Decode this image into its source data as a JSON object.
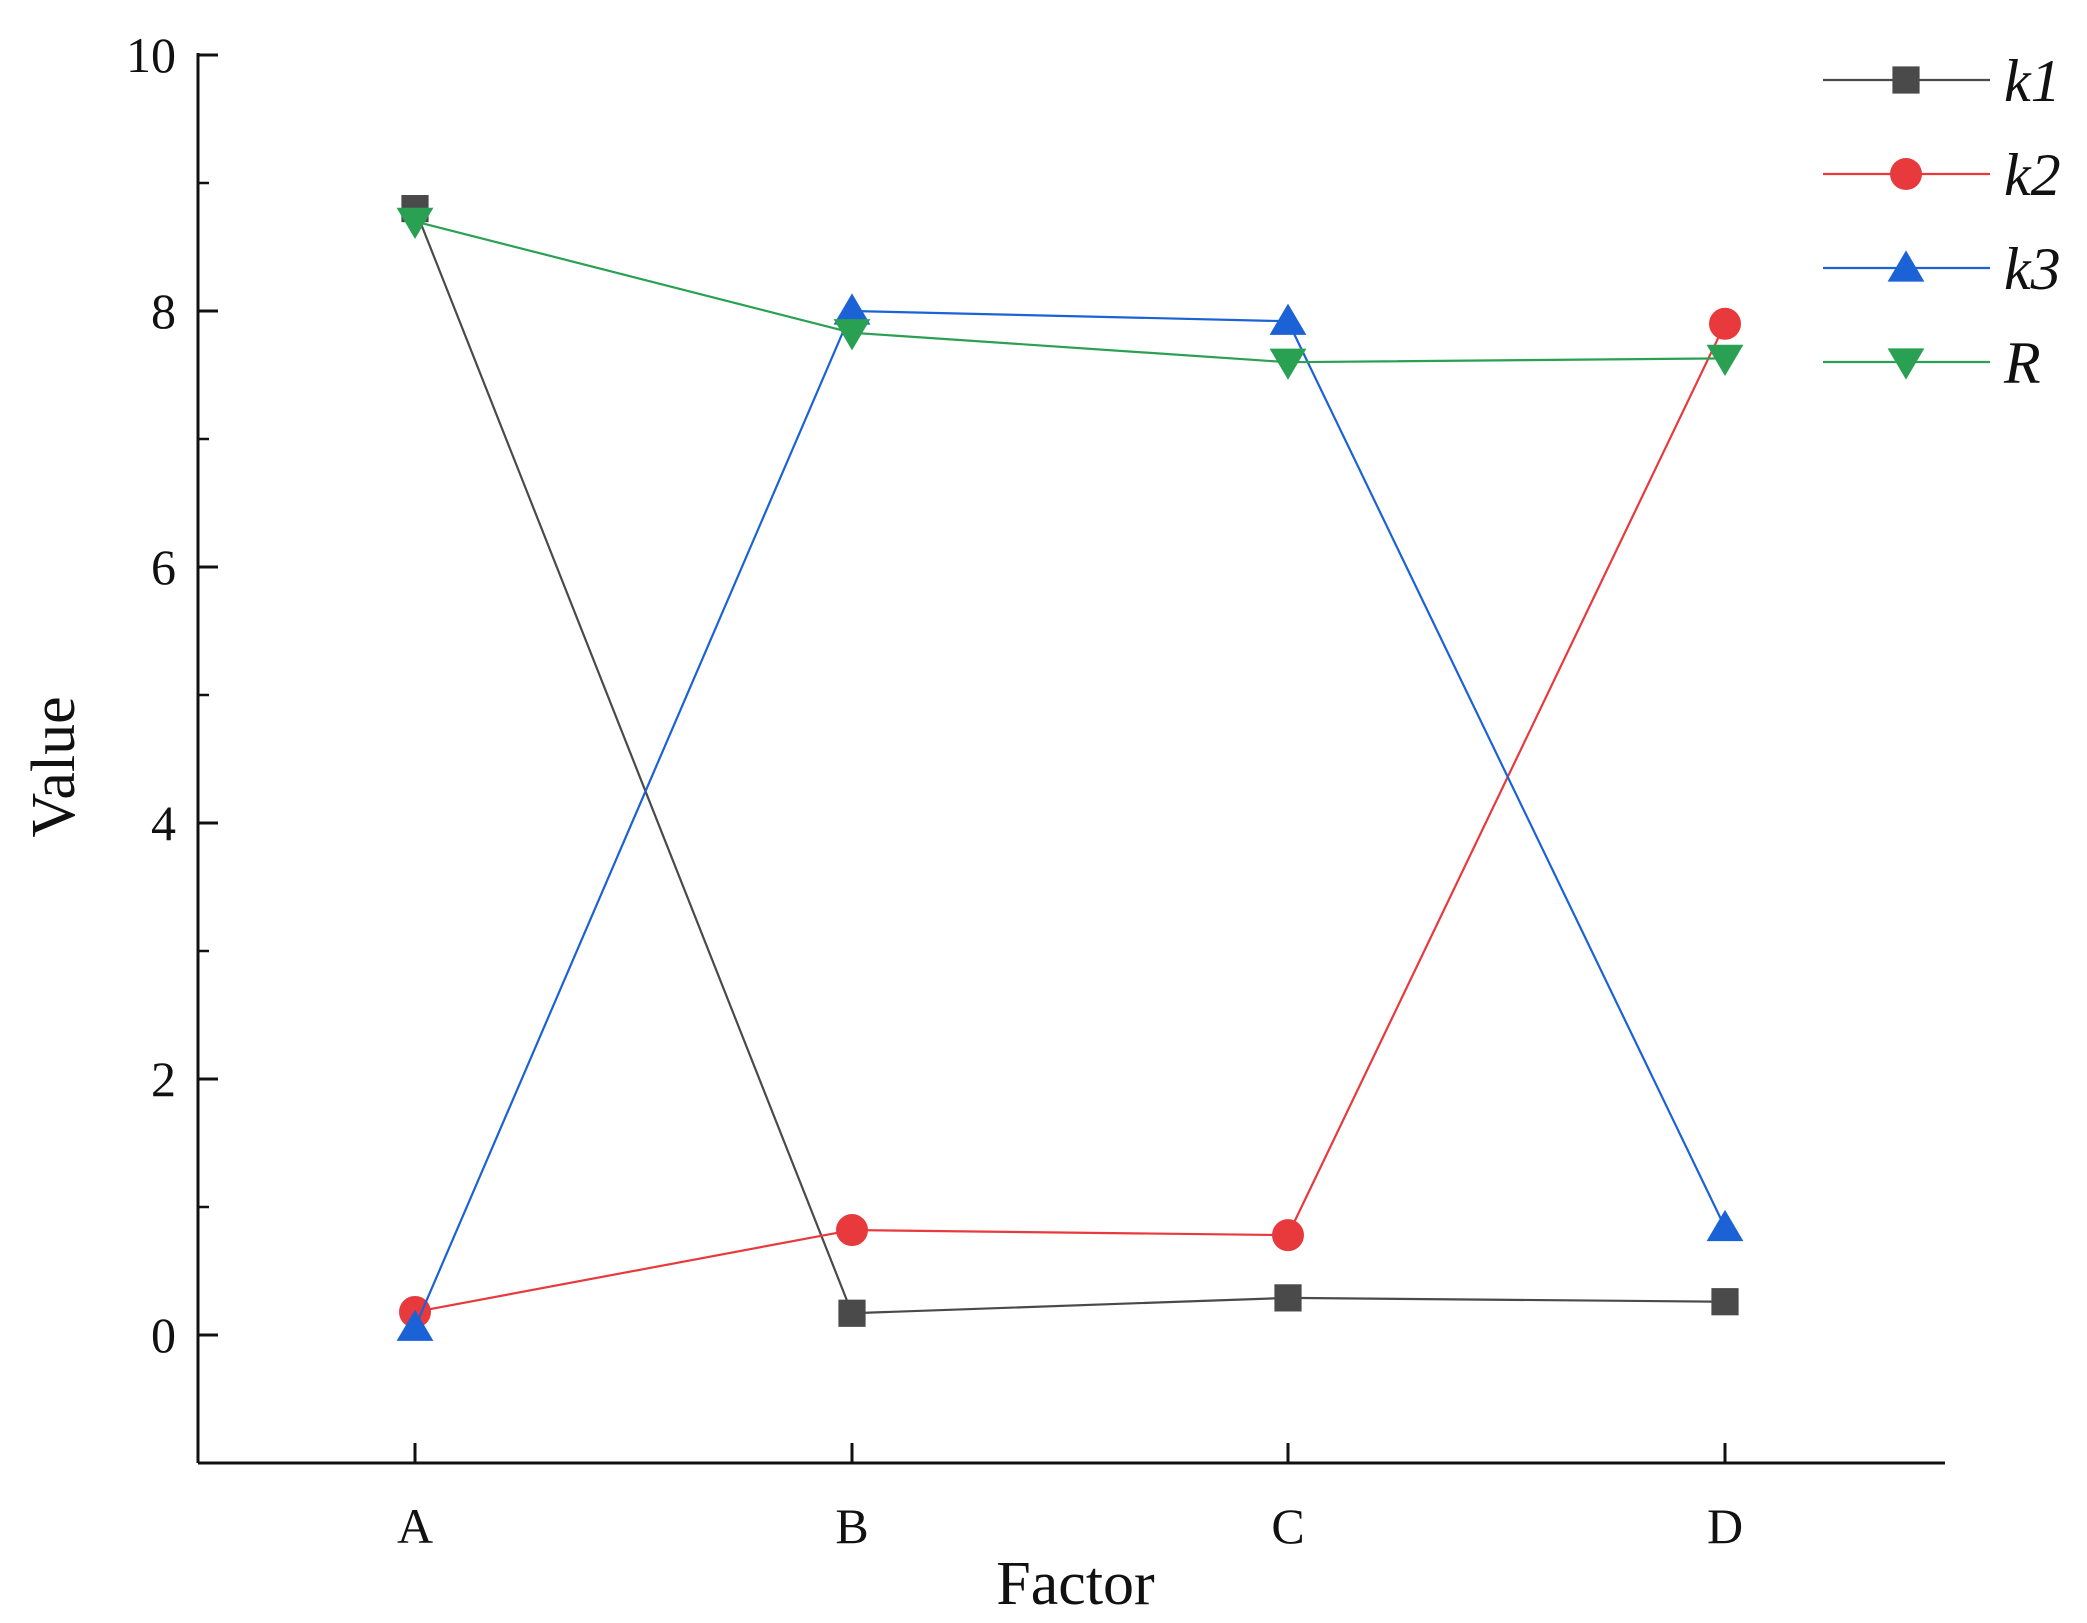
{
  "chart_data": {
    "type": "line",
    "xlabel": "Factor",
    "ylabel": "Value",
    "categories": [
      "A",
      "B",
      "C",
      "D"
    ],
    "ylim": [
      -1,
      10
    ],
    "yticks": [
      0,
      2,
      4,
      6,
      8,
      10
    ],
    "grid": false,
    "legend_position": "top-right",
    "series": [
      {
        "name": "k1",
        "marker": "square",
        "color": "#4a4a4a",
        "values": [
          8.8,
          0.17,
          0.29,
          0.26
        ]
      },
      {
        "name": "k2",
        "marker": "circle",
        "color": "#e8393d",
        "values": [
          0.18,
          0.82,
          0.78,
          7.9
        ]
      },
      {
        "name": "k3",
        "marker": "triangle-up",
        "color": "#1a62d6",
        "values": [
          0.06,
          8.0,
          7.92,
          0.84
        ]
      },
      {
        "name": "R",
        "marker": "triangle-down",
        "color": "#2aa052",
        "values": [
          8.7,
          7.83,
          7.6,
          7.63
        ]
      }
    ]
  }
}
